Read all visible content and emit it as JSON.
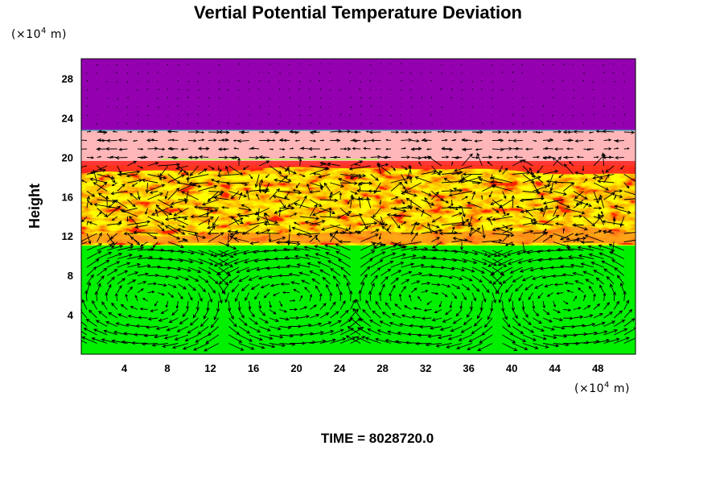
{
  "title": "Vertial Potential Temperature Deviation",
  "time_label": "TIME = 8028720.0",
  "colors": {
    "top_band": "#9400b0",
    "pink_band": "#ffb6b9",
    "red": "#ff2020",
    "orange": "#ff8a1e",
    "yellow": "#f2f200",
    "green": "#00f000"
  },
  "chart_data": {
    "type": "heatmap",
    "title": "Vertial Potential Temperature Deviation",
    "xlabel": "",
    "ylabel": "Height",
    "x_unit": {
      "prefix": "(×10",
      "exp": "4",
      "suffix": " m)"
    },
    "y_unit": {
      "prefix": "(×10",
      "exp": "4",
      "suffix": " m)"
    },
    "xlim": [
      0,
      51.5
    ],
    "ylim": [
      0,
      30
    ],
    "x_ticks": [
      4,
      8,
      12,
      16,
      20,
      24,
      28,
      32,
      36,
      40,
      44,
      48
    ],
    "y_ticks": [
      4,
      8,
      12,
      16,
      20,
      24,
      28
    ],
    "x_tick_labels": [
      "4",
      "8",
      "12",
      "16",
      "20",
      "24",
      "28",
      "32",
      "36",
      "40",
      "44",
      "48"
    ],
    "y_tick_labels": [
      "4",
      "8",
      "12",
      "16",
      "20",
      "24",
      "28"
    ],
    "overlay": "velocity vectors",
    "layers": [
      {
        "from": 0,
        "to": 10.8,
        "color": "green"
      },
      {
        "from": 10.8,
        "to": 19.6,
        "color": "yellow/orange/red turbulent"
      },
      {
        "from": 19.6,
        "to": 22.7,
        "color": "pink"
      },
      {
        "from": 22.7,
        "to": 30,
        "color": "purple"
      }
    ],
    "grid": false,
    "legend": "none"
  }
}
